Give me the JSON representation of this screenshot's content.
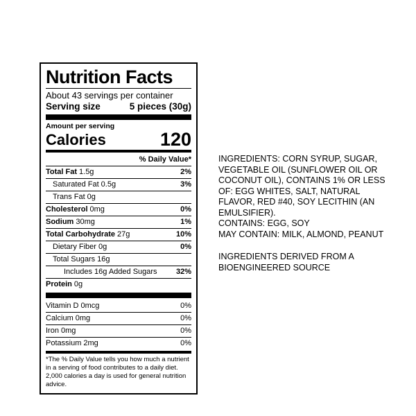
{
  "label": {
    "title": "Nutrition Facts",
    "servings_per_container": "About 43 servings per container",
    "serving_size_label": "Serving size",
    "serving_size_value": "5 pieces (30g)",
    "amount_per_serving": "Amount per serving",
    "calories_label": "Calories",
    "calories_value": "120",
    "daily_value_header": "% Daily Value*",
    "rows": [
      {
        "name": "Total Fat",
        "amount": "1.5g",
        "pct": "2%"
      },
      {
        "name": "Saturated Fat",
        "amount": "0.5g",
        "pct": "3%"
      },
      {
        "name": "Trans Fat",
        "amount": "0g",
        "pct": ""
      },
      {
        "name": "Cholesterol",
        "amount": "0mg",
        "pct": "0%"
      },
      {
        "name": "Sodium",
        "amount": "30mg",
        "pct": "1%"
      },
      {
        "name": "Total Carbohydrate",
        "amount": "27g",
        "pct": "10%"
      },
      {
        "name": "Dietary Fiber",
        "amount": "0g",
        "pct": "0%"
      },
      {
        "name": "Total Sugars",
        "amount": "16g",
        "pct": ""
      },
      {
        "name": "Includes 16g Added Sugars",
        "amount": "",
        "pct": "32%"
      },
      {
        "name": "Protein",
        "amount": "0g",
        "pct": ""
      }
    ],
    "micronutrients": [
      {
        "name": "Vitamin D",
        "amount": "0mcg",
        "pct": "0%"
      },
      {
        "name": "Calcium",
        "amount": "0mg",
        "pct": "0%"
      },
      {
        "name": "Iron",
        "amount": "0mg",
        "pct": "0%"
      },
      {
        "name": "Potassium",
        "amount": "2mg",
        "pct": "0%"
      }
    ],
    "footnote": "*The % Daily Value tells you how much a nutrient in a serving of food contributes to a daily diet. 2,000 calories a day is used for general nutrition advice."
  },
  "ingredients_panel": {
    "ingredients": "INGREDIENTS: CORN SYRUP, SUGAR, VEGETABLE OIL (SUNFLOWER OIL OR COCONUT OIL), CONTAINS 1% OR LESS OF: EGG WHITES, SALT, NATURAL FLAVOR, RED #40, SOY LECITHIN (AN EMULSIFIER).",
    "contains": "CONTAINS: EGG, SOY",
    "may_contain": "MAY CONTAIN: MILK, ALMOND, PEANUT",
    "bioengineered": "INGREDIENTS DERIVED FROM A BIOENGINEERED SOURCE"
  },
  "colors": {
    "text": "#000000",
    "background": "#ffffff",
    "border": "#000000"
  }
}
